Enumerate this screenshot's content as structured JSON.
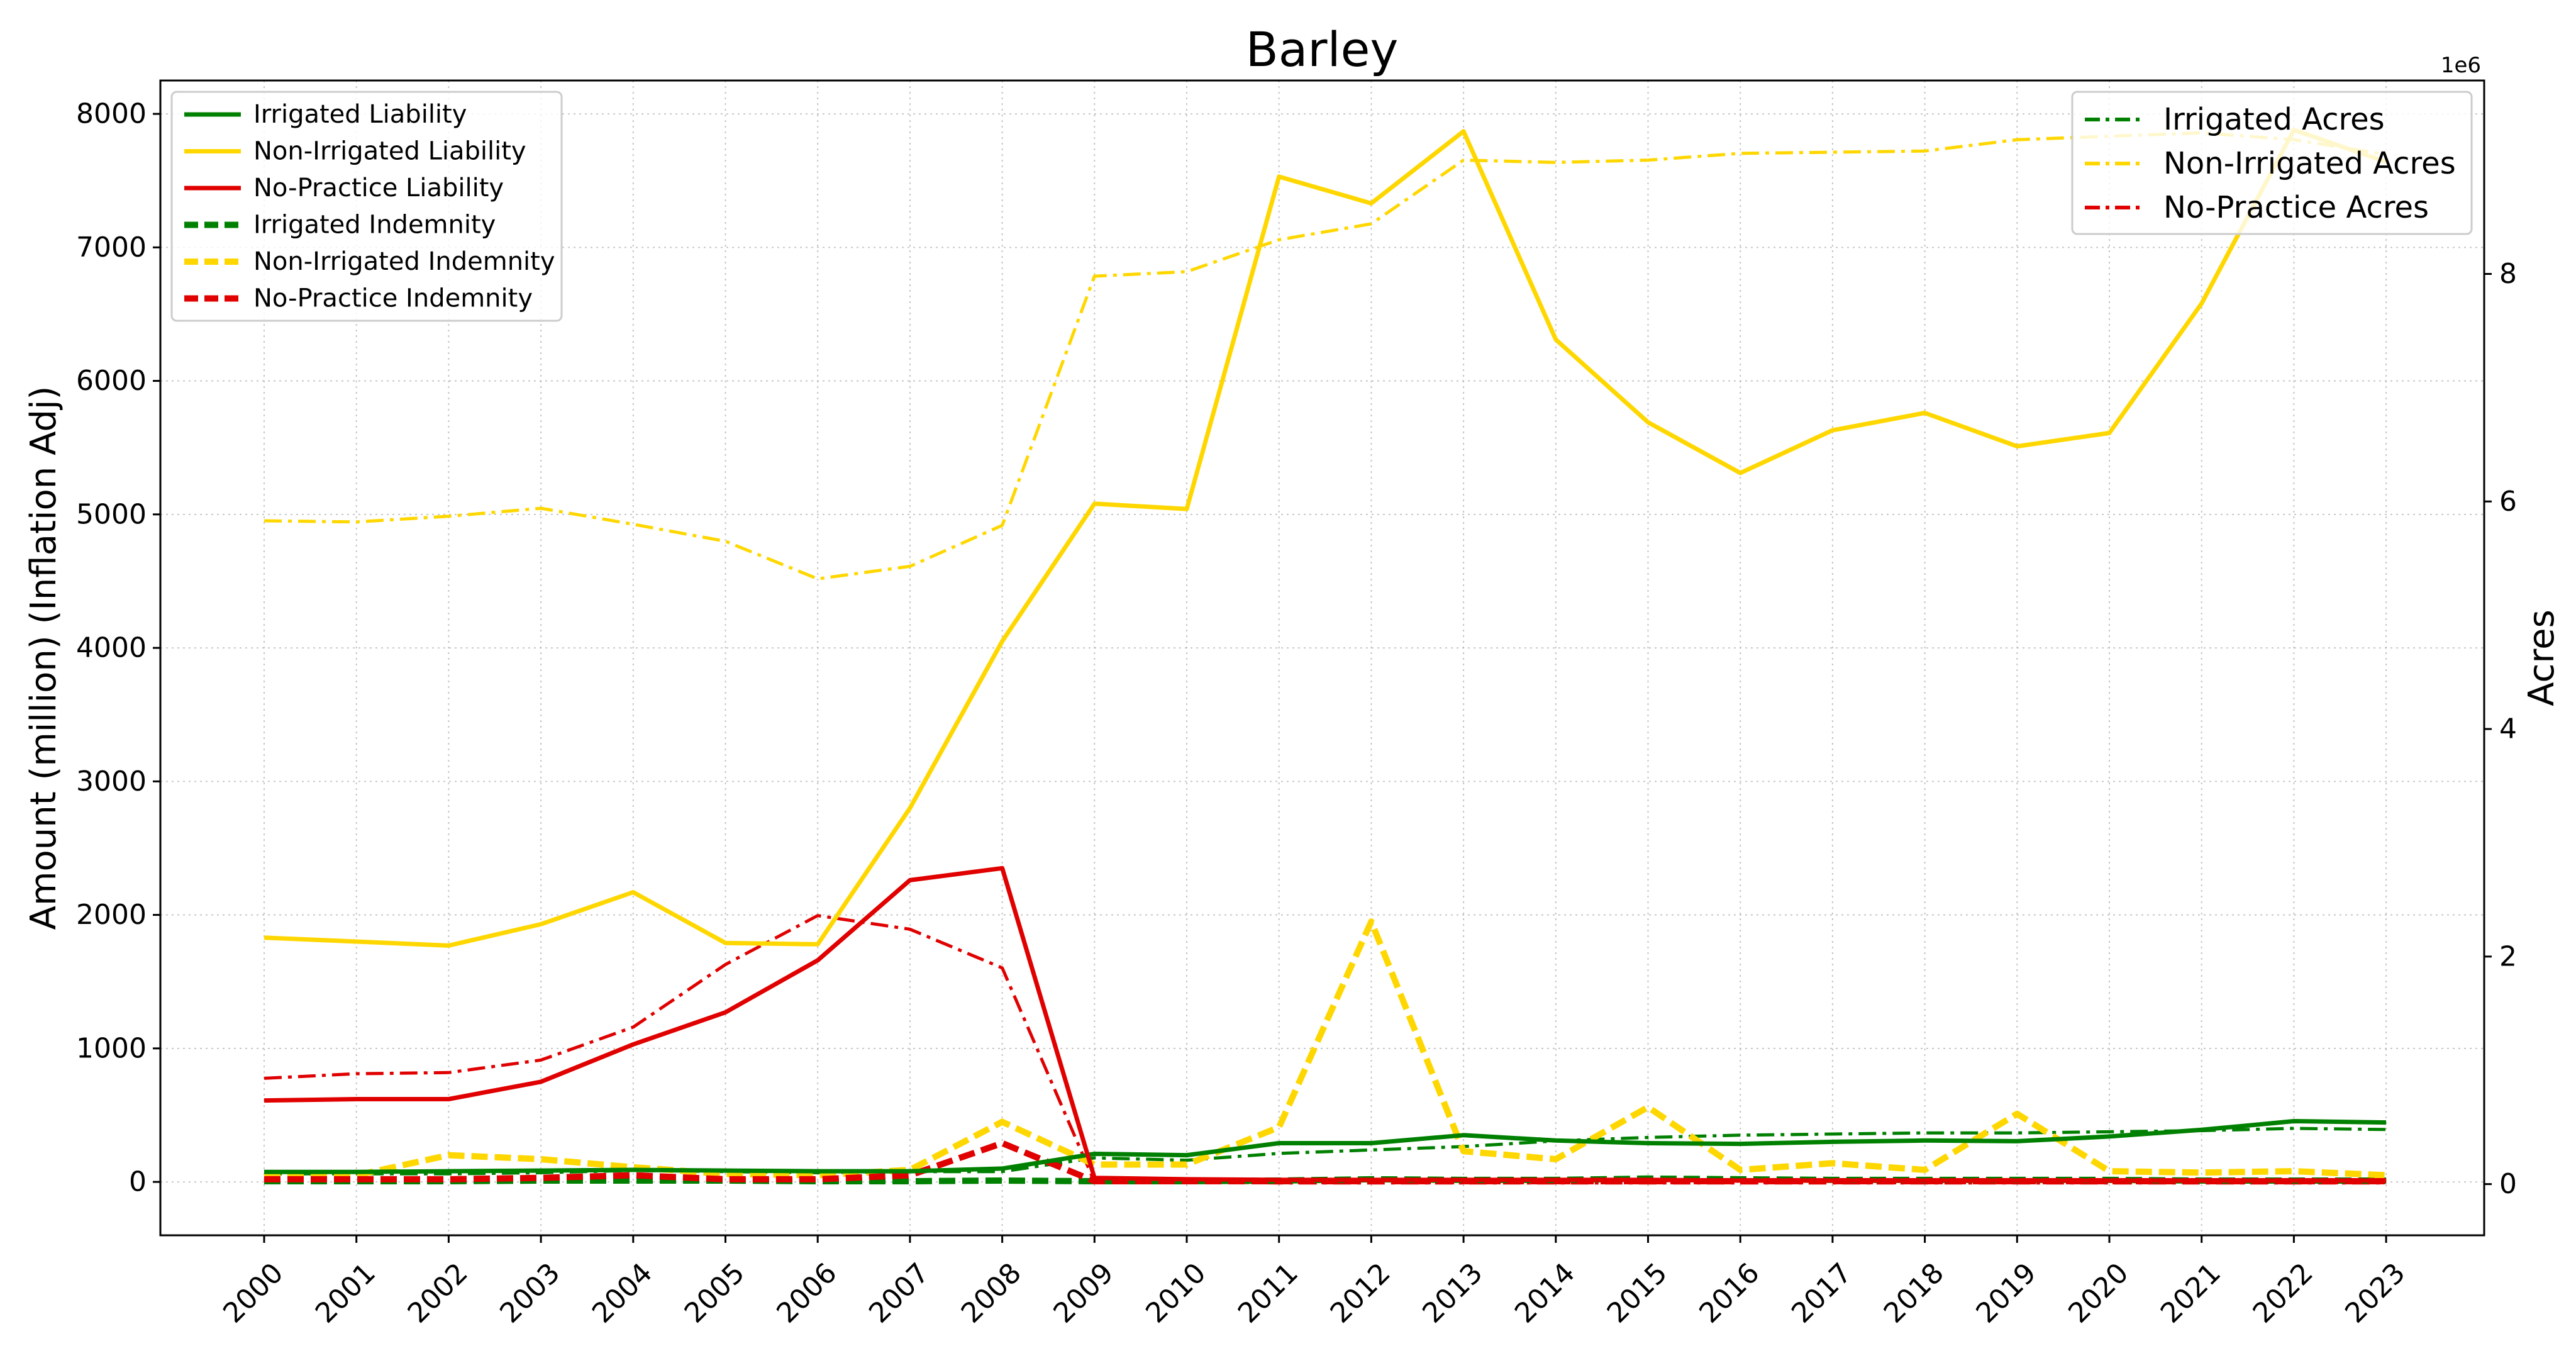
{
  "chart_data": {
    "type": "line",
    "title": "Barley",
    "ylabel": "Amount (million) (Inflation Adj)",
    "y2label": "Acres",
    "y2_multiplier": "1e6",
    "ylim": [
      -400,
      8250
    ],
    "y2lim": [
      -0.45,
      9.7
    ],
    "yticks": [
      0,
      1000,
      2000,
      3000,
      4000,
      5000,
      6000,
      7000,
      8000
    ],
    "y2ticks": [
      0,
      2,
      4,
      6,
      8
    ],
    "grid": true,
    "x": [
      "2000",
      "2001",
      "2002",
      "2003",
      "2004",
      "2005",
      "2006",
      "2007",
      "2008",
      "2009",
      "2010",
      "2011",
      "2012",
      "2013",
      "2014",
      "2015",
      "2016",
      "2017",
      "2018",
      "2019",
      "2020",
      "2021",
      "2022",
      "2023"
    ],
    "colors": {
      "green": "#008000",
      "yellow": "#FFD700",
      "red": "#E00000"
    },
    "legend_left_position": "upper-left",
    "legend_right_position": "upper-right",
    "series": [
      {
        "name": "Irrigated Liability",
        "axis": "left",
        "color": "#008000",
        "style": "solid",
        "values": [
          75,
          75,
          80,
          85,
          90,
          85,
          80,
          80,
          100,
          210,
          200,
          290,
          290,
          350,
          310,
          290,
          285,
          300,
          310,
          305,
          340,
          390,
          455,
          445
        ]
      },
      {
        "name": "Non-Irrigated Liability",
        "axis": "left",
        "color": "#FFD700",
        "style": "solid",
        "values": [
          1830,
          1800,
          1770,
          1930,
          2170,
          1790,
          1780,
          2800,
          4050,
          5080,
          5040,
          7530,
          7330,
          7870,
          6310,
          5690,
          5310,
          5630,
          5760,
          5510,
          5610,
          6580,
          7880,
          7640
        ]
      },
      {
        "name": "No-Practice Liability",
        "axis": "left",
        "color": "#E00000",
        "style": "solid",
        "values": [
          610,
          620,
          620,
          750,
          1030,
          1270,
          1660,
          2260,
          2350,
          30,
          20,
          15,
          15,
          15,
          15,
          15,
          10,
          10,
          10,
          10,
          10,
          10,
          10,
          10
        ]
      },
      {
        "name": "Irrigated Indemnity",
        "axis": "left",
        "color": "#008000",
        "style": "dashed",
        "values": [
          5,
          5,
          5,
          10,
          10,
          10,
          5,
          5,
          10,
          5,
          5,
          10,
          20,
          15,
          15,
          25,
          20,
          15,
          15,
          15,
          15,
          10,
          10,
          10
        ]
      },
      {
        "name": "Non-Irrigated Indemnity",
        "axis": "left",
        "color": "#FFD700",
        "style": "dashed",
        "values": [
          40,
          50,
          200,
          170,
          110,
          60,
          50,
          90,
          450,
          130,
          130,
          410,
          1950,
          230,
          170,
          560,
          90,
          140,
          90,
          510,
          80,
          70,
          80,
          50
        ]
      },
      {
        "name": "No-Practice Indemnity",
        "axis": "left",
        "color": "#E00000",
        "style": "dashed",
        "values": [
          20,
          20,
          20,
          30,
          50,
          20,
          20,
          50,
          290,
          5,
          5,
          5,
          5,
          5,
          5,
          5,
          5,
          5,
          5,
          5,
          5,
          5,
          5,
          5
        ]
      },
      {
        "name": "Irrigated Acres",
        "axis": "right",
        "color": "#008000",
        "style": "dashdot",
        "values": [
          0.09,
          0.09,
          0.09,
          0.1,
          0.12,
          0.11,
          0.1,
          0.11,
          0.11,
          0.23,
          0.21,
          0.27,
          0.3,
          0.33,
          0.38,
          0.41,
          0.43,
          0.44,
          0.45,
          0.45,
          0.46,
          0.47,
          0.49,
          0.48
        ]
      },
      {
        "name": "Non-Irrigated Acres",
        "axis": "right",
        "color": "#FFD700",
        "style": "dashdot",
        "values": [
          5.83,
          5.82,
          5.87,
          5.94,
          5.8,
          5.65,
          5.32,
          5.43,
          5.79,
          7.98,
          8.02,
          8.3,
          8.44,
          9.0,
          8.98,
          9.0,
          9.06,
          9.07,
          9.08,
          9.18,
          9.21,
          9.24,
          9.18,
          9.05
        ]
      },
      {
        "name": "No-Practice Acres",
        "axis": "right",
        "color": "#E00000",
        "style": "dashdot",
        "values": [
          0.93,
          0.97,
          0.98,
          1.09,
          1.38,
          1.93,
          2.36,
          2.24,
          1.9,
          0.02,
          0.02,
          0.01,
          0.01,
          0.01,
          0.01,
          0.01,
          0.01,
          0.01,
          0.01,
          0.01,
          0.01,
          0.01,
          0.01,
          0.01
        ]
      }
    ]
  }
}
